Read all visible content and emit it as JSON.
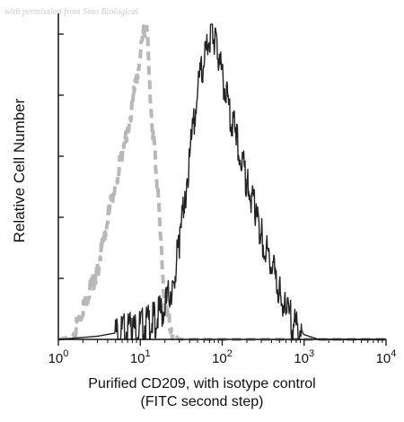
{
  "watermark": "with permission from Sino Biological",
  "chart_data": {
    "type": "line",
    "xlabel_line1": "Purified CD209, with isotype control",
    "xlabel_line2": "(FITC second step)",
    "ylabel": "Relative Cell Number",
    "xscale": "log",
    "xlim": [
      1,
      10000
    ],
    "ylim": [
      0,
      1
    ],
    "x_ticks": [
      {
        "base": "10",
        "exp": "0",
        "value": 1
      },
      {
        "base": "10",
        "exp": "1",
        "value": 10
      },
      {
        "base": "10",
        "exp": "2",
        "value": 100
      },
      {
        "base": "10",
        "exp": "3",
        "value": 1000
      },
      {
        "base": "10",
        "exp": "4",
        "value": 10000
      }
    ],
    "grid": false,
    "colors": {
      "sample": "#222222",
      "isotype": "#b8b8b8"
    },
    "series": [
      {
        "style": "solid",
        "x": [
          1,
          3,
          8,
          15,
          20,
          25,
          30,
          35,
          40,
          45,
          50,
          55,
          60,
          65,
          70,
          75,
          80,
          85,
          90,
          100,
          110,
          120,
          130,
          150,
          170,
          200,
          250,
          300,
          400,
          500,
          600,
          800,
          1000,
          1500,
          10000
        ],
        "y": [
          0.0,
          0.01,
          0.03,
          0.06,
          0.1,
          0.18,
          0.3,
          0.45,
          0.58,
          0.68,
          0.78,
          0.84,
          0.88,
          0.92,
          0.96,
          0.99,
          0.95,
          0.92,
          0.88,
          0.84,
          0.78,
          0.74,
          0.7,
          0.64,
          0.58,
          0.5,
          0.41,
          0.33,
          0.24,
          0.15,
          0.09,
          0.04,
          0.015,
          0.0,
          0.0
        ]
      },
      {
        "style": "dashed",
        "x": [
          1,
          1.5,
          2,
          3,
          4,
          5,
          6,
          7,
          8,
          9,
          10,
          11,
          12,
          13,
          14,
          15,
          16,
          18,
          20,
          25,
          30,
          40,
          10000
        ],
        "y": [
          0.0,
          0.01,
          0.1,
          0.22,
          0.38,
          0.5,
          0.58,
          0.66,
          0.75,
          0.82,
          0.9,
          0.97,
          1.0,
          0.8,
          0.68,
          0.6,
          0.5,
          0.28,
          0.1,
          0.02,
          0.0,
          0.0,
          0.0
        ]
      }
    ]
  }
}
